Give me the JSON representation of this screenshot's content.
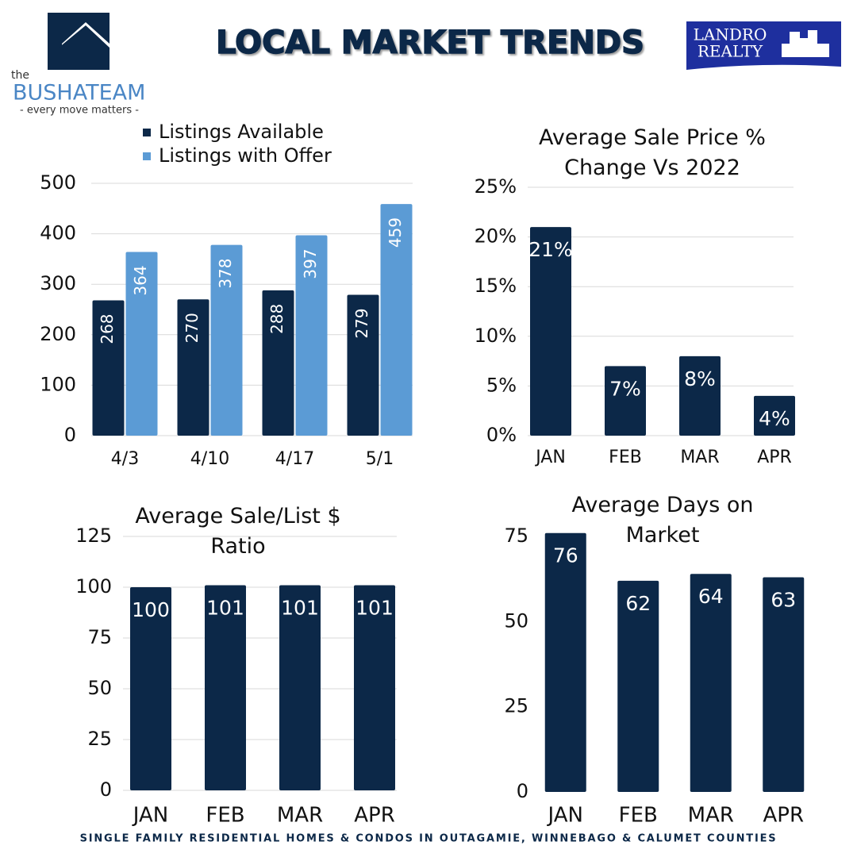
{
  "header": {
    "title": "LOCAL MARKET TRENDS",
    "logo_the": "the",
    "logo_name": "BUSHATEAM",
    "logo_tagline": "- every move matters -",
    "brand_line1": "LANDRO",
    "brand_line2": "REALTY"
  },
  "footer": "SINGLE FAMILY RESIDENTIAL HOMES & CONDOS IN OUTAGAMIE, WINNEBAGO & CALUMET COUNTIES",
  "chart_data": [
    {
      "type": "bar",
      "categories": [
        "4/3",
        "4/10",
        "4/17",
        "5/1"
      ],
      "series": [
        {
          "name": "Listings Available",
          "color": "#0c2848",
          "values": [
            268,
            270,
            288,
            279
          ]
        },
        {
          "name": "Listings with Offer",
          "color": "#5b9bd5",
          "values": [
            364,
            378,
            397,
            459
          ]
        }
      ],
      "ylim": [
        0,
        500
      ],
      "yticks": [
        0,
        100,
        200,
        300,
        400,
        500
      ],
      "grid": true,
      "legend": "top"
    },
    {
      "type": "bar",
      "title": "Average Sale Price % Change Vs 2022",
      "categories": [
        "JAN",
        "FEB",
        "MAR",
        "APR"
      ],
      "values": [
        21,
        7,
        8,
        4
      ],
      "value_labels": [
        "21%",
        "7%",
        "8%",
        "4%"
      ],
      "color": "#0c2848",
      "ylim": [
        0,
        25
      ],
      "yticks": [
        {
          "value": 0,
          "label": "0%"
        },
        {
          "value": 5,
          "label": "5%"
        },
        {
          "value": 10,
          "label": "10%"
        },
        {
          "value": 15,
          "label": "15%"
        },
        {
          "value": 20,
          "label": "20%"
        },
        {
          "value": 25,
          "label": "25%"
        }
      ],
      "grid": true
    },
    {
      "type": "bar",
      "title": "Average Sale/List $ Ratio",
      "categories": [
        "JAN",
        "FEB",
        "MAR",
        "APR"
      ],
      "values": [
        100,
        101,
        101,
        101
      ],
      "color": "#0c2848",
      "ylim": [
        0,
        125
      ],
      "yticks": [
        0,
        25,
        50,
        75,
        100,
        125
      ],
      "grid": true
    },
    {
      "type": "bar",
      "title": "Average Days on Market",
      "categories": [
        "JAN",
        "FEB",
        "MAR",
        "APR"
      ],
      "values": [
        76,
        62,
        64,
        63
      ],
      "color": "#0c2848",
      "ylim": [
        0,
        75
      ],
      "yticks": [
        0,
        25,
        50,
        75
      ],
      "grid": false
    }
  ]
}
